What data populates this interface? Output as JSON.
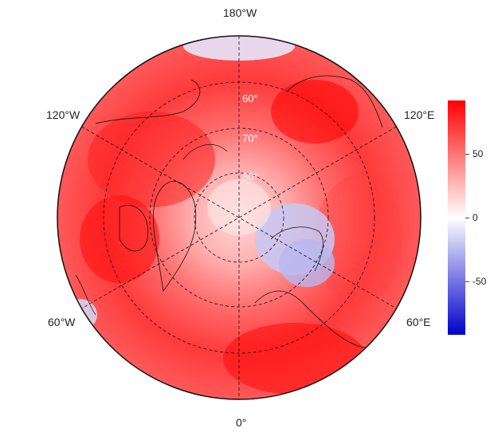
{
  "map": {
    "projection": "north-polar-stereographic",
    "central_meridian_at_bottom": "0°",
    "longitude_labels": {
      "top": "180°W",
      "upper_left": "120°W",
      "upper_right": "120°E",
      "lower_left": "60°W",
      "lower_right": "60°E",
      "bottom": "0°"
    },
    "latitude_labels": [
      "60°",
      "70°",
      "80°"
    ],
    "graticule_style": "dashed"
  },
  "colorbar": {
    "ticks": [
      "50",
      "0",
      "-50"
    ],
    "range": [
      -90,
      90
    ],
    "colors": {
      "low": "#0000cc",
      "mid": "#ffffff",
      "high": "#ff0000"
    }
  }
}
